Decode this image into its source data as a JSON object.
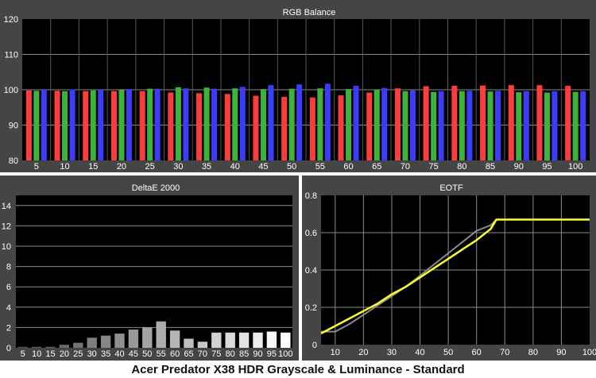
{
  "caption": "Acer Predator X38 HDR Grayscale & Luminance - Standard",
  "colors": {
    "panel_bg": "#454545",
    "plot_bg": "#000000",
    "grid": "#8a8a8a",
    "text": "#ffffff",
    "red": "#ff3c3c",
    "green": "#3cb43c",
    "blue": "#3c3cff",
    "eotf_target": "#8c8c8c",
    "eotf_measured": "#ffff32"
  },
  "chart_data": [
    {
      "type": "bar",
      "title": "RGB Balance",
      "categories": [
        "5",
        "10",
        "15",
        "20",
        "25",
        "30",
        "35",
        "40",
        "45",
        "50",
        "55",
        "60",
        "65",
        "70",
        "75",
        "80",
        "85",
        "90",
        "95",
        "100"
      ],
      "series": [
        {
          "name": "",
          "color": "red",
          "values": [
            99.8,
            99.7,
            99.6,
            99.6,
            99.6,
            99.2,
            99.0,
            98.8,
            98.3,
            98.0,
            97.8,
            98.4,
            99.2,
            100.4,
            101.0,
            101.1,
            101.2,
            101.3,
            101.3,
            101.1
          ]
        },
        {
          "name": "",
          "color": "green",
          "values": [
            99.7,
            99.6,
            99.8,
            99.9,
            100.3,
            100.7,
            100.6,
            100.4,
            100.2,
            100.3,
            100.4,
            100.2,
            100.1,
            99.6,
            99.4,
            99.6,
            99.5,
            99.3,
            99.2,
            99.4
          ]
        },
        {
          "name": "",
          "color": "blue",
          "values": [
            100.0,
            100.1,
            100.0,
            100.2,
            100.3,
            100.4,
            100.3,
            100.8,
            101.3,
            101.5,
            101.7,
            101.1,
            100.5,
            99.8,
            99.6,
            99.7,
            99.7,
            99.6,
            99.6,
            99.6
          ]
        }
      ],
      "ylim": [
        80,
        120
      ],
      "yticks": [
        80,
        90,
        100,
        110,
        120
      ],
      "grid": true
    },
    {
      "type": "bar",
      "title": "DeltaE 2000",
      "categories": [
        "5",
        "10",
        "15",
        "20",
        "25",
        "30",
        "35",
        "40",
        "45",
        "50",
        "55",
        "60",
        "65",
        "70",
        "75",
        "80",
        "85",
        "90",
        "95",
        "100"
      ],
      "series": [
        {
          "name": "",
          "values": [
            0.1,
            0.1,
            0.1,
            0.3,
            0.5,
            1.0,
            1.2,
            1.4,
            1.8,
            2.0,
            2.6,
            1.7,
            0.9,
            0.6,
            1.5,
            1.5,
            1.5,
            1.5,
            1.6,
            1.5
          ]
        }
      ],
      "ylim": [
        0,
        15
      ],
      "yticks": [
        0,
        2,
        4,
        6,
        8,
        10,
        12,
        14
      ],
      "grid": true
    },
    {
      "type": "line",
      "title": "EOTF",
      "xlim": [
        5,
        100
      ],
      "ylim": [
        0,
        0.8
      ],
      "xticks": [
        10,
        20,
        30,
        40,
        50,
        60,
        70,
        80,
        90,
        100
      ],
      "yticks": [
        0,
        0.2,
        0.4,
        0.6,
        0.8
      ],
      "grid": true,
      "series": [
        {
          "name": "",
          "color": "eotf_target",
          "x": [
            5,
            10,
            15,
            20,
            25,
            30,
            35,
            40,
            45,
            50,
            55,
            60,
            65,
            67,
            70,
            75,
            80,
            85,
            90,
            95,
            100
          ],
          "y": [
            0.07,
            0.07,
            0.11,
            0.16,
            0.21,
            0.26,
            0.31,
            0.37,
            0.43,
            0.49,
            0.55,
            0.61,
            0.64,
            0.67,
            0.67,
            0.67,
            0.67,
            0.67,
            0.67,
            0.67,
            0.67
          ]
        },
        {
          "name": "",
          "color": "eotf_measured",
          "x": [
            5,
            10,
            15,
            20,
            25,
            30,
            35,
            40,
            45,
            50,
            55,
            60,
            65,
            67,
            70,
            75,
            80,
            85,
            90,
            95,
            100
          ],
          "y": [
            0.06,
            0.1,
            0.14,
            0.18,
            0.22,
            0.27,
            0.31,
            0.36,
            0.41,
            0.46,
            0.51,
            0.56,
            0.62,
            0.67,
            0.67,
            0.67,
            0.67,
            0.67,
            0.67,
            0.67,
            0.67
          ]
        }
      ]
    }
  ]
}
